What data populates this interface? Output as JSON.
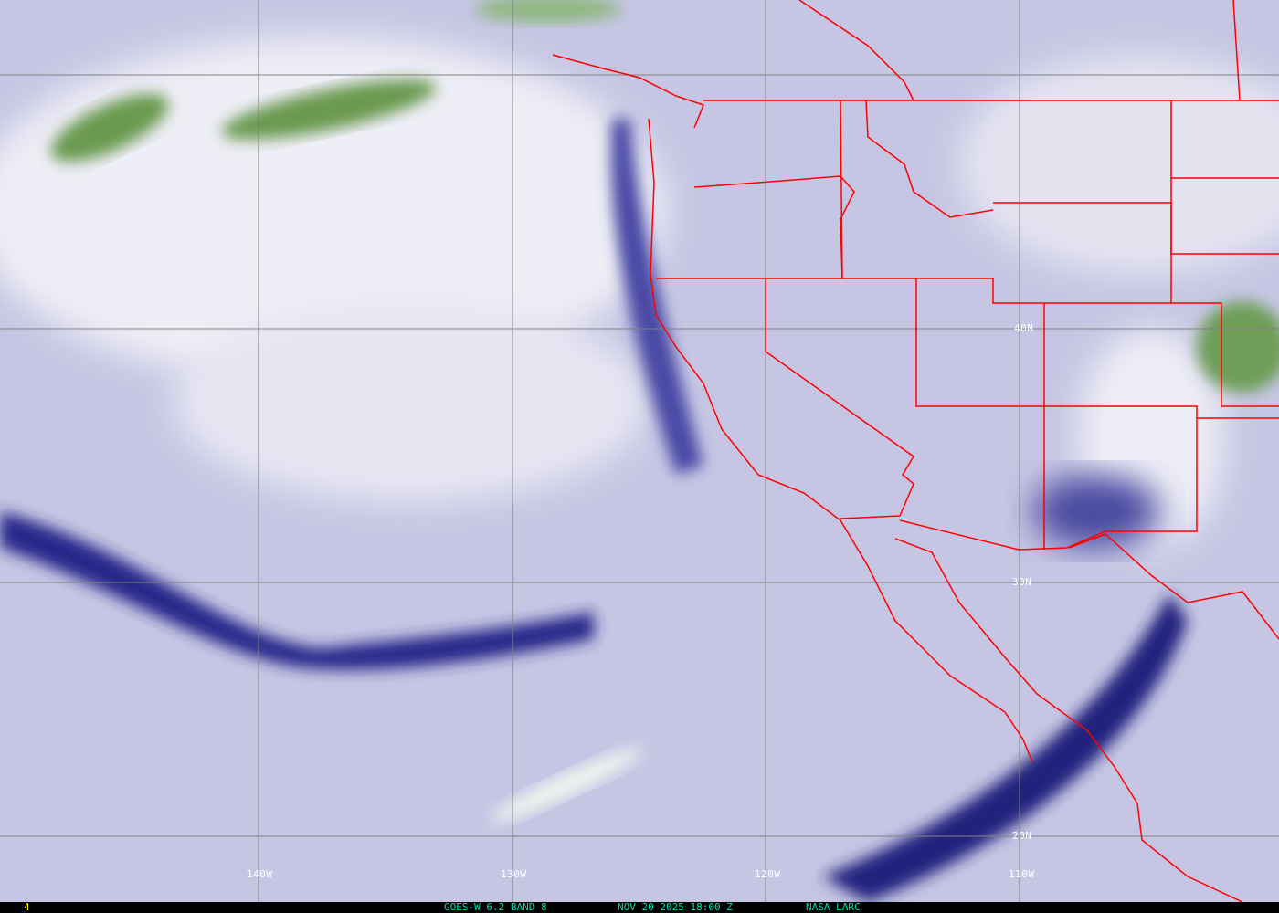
{
  "image": {
    "type": "satellite water vapor imagery",
    "colors": {
      "border_lines": "#ff0000",
      "grid_lines": "#808080",
      "dry": "#1a1a70",
      "moist": "#f2f2f8",
      "cold_clouds": "#4f8f3a",
      "footer_text": "#00e0b0",
      "footer_number": "#ffff00"
    }
  },
  "grid_labels": {
    "lon": [
      "140W",
      "130W",
      "120W",
      "110W"
    ],
    "lat": [
      "40N",
      "30N",
      "20N"
    ]
  },
  "footer": {
    "frame_number": "4",
    "satellite": "GOES-W 6.2 BAND 8",
    "datetime": "NOV 20 2025 18:00 Z",
    "source": "NASA LARC"
  }
}
